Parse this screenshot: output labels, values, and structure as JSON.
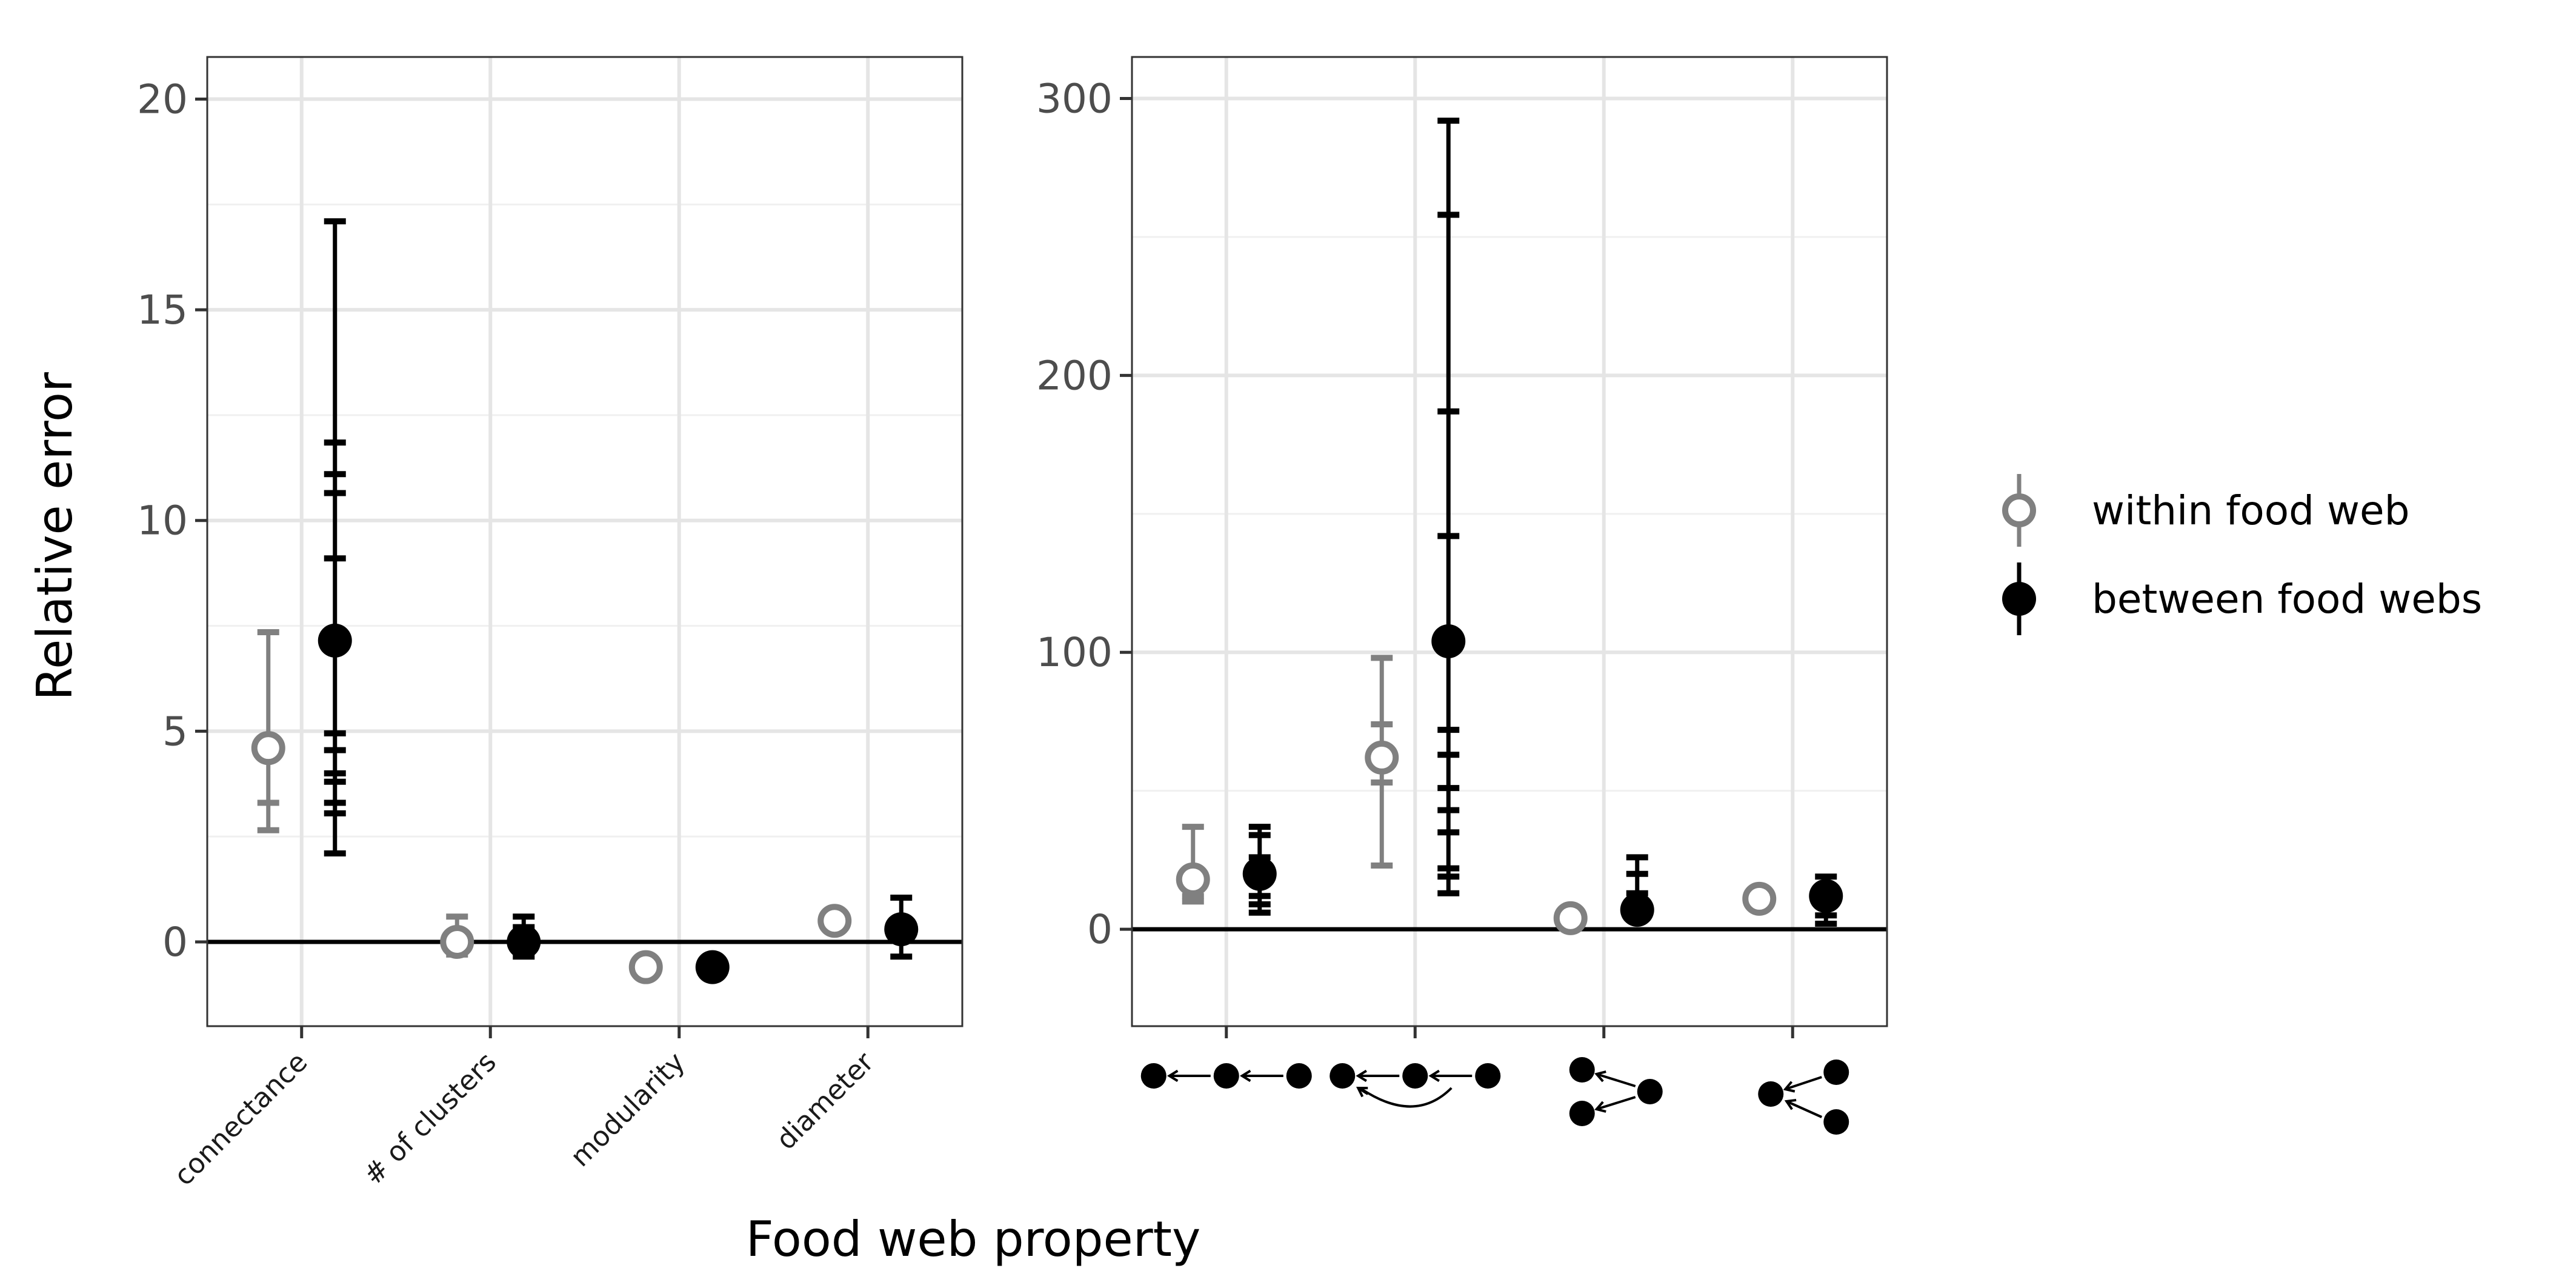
{
  "chart_data": [
    {
      "type": "scatter",
      "chart_subtype": "point with error bars",
      "xlabel": "Food web property",
      "ylabel": "Relative error",
      "categories": [
        "connectance",
        "# of clusters",
        "modularity",
        "diameter"
      ],
      "ylim": [
        -2,
        21
      ],
      "yticks": [
        0,
        5,
        10,
        15,
        20
      ],
      "reference_line": 0,
      "grid": true,
      "series": [
        {
          "name": "within food web",
          "marker": "open circle",
          "color": "#808080",
          "values": [
            4.6,
            0.0,
            -0.6,
            0.5
          ],
          "error_bar_caps": [
            [
              7.35,
              3.3,
              2.65
            ],
            [
              0.6,
              -0.3
            ],
            [],
            []
          ]
        },
        {
          "name": "between food webs",
          "marker": "filled circle",
          "color": "#000000",
          "values": [
            7.15,
            0.0,
            -0.6,
            0.3
          ],
          "error_bar_caps": [
            [
              17.1,
              11.85,
              11.1,
              10.65,
              9.1,
              4.95,
              4.55,
              4.0,
              3.8,
              3.3,
              3.05,
              2.1
            ],
            [
              0.6,
              0.35,
              -0.1,
              -0.35
            ],
            [],
            [
              1.05,
              0.2,
              -0.35
            ]
          ]
        }
      ]
    },
    {
      "type": "scatter",
      "chart_subtype": "point with error bars",
      "categories": [
        "motif-chain",
        "motif-omnivory",
        "motif-apparent-competition",
        "motif-exploitative-competition"
      ],
      "ylim": [
        -35,
        315
      ],
      "yticks": [
        0,
        100,
        200,
        300
      ],
      "reference_line": 0,
      "grid": true,
      "series": [
        {
          "name": "within food web",
          "marker": "open circle",
          "color": "#808080",
          "values": [
            18,
            62,
            4,
            11
          ],
          "error_bar_caps": [
            [
              37,
              12,
              10
            ],
            [
              98,
              74,
              53,
              23
            ],
            [],
            []
          ]
        },
        {
          "name": "between food webs",
          "marker": "filled circle",
          "color": "#000000",
          "values": [
            20,
            104,
            7,
            12
          ],
          "error_bar_caps": [
            [
              37,
              34,
              26,
              23,
              12,
              9,
              6
            ],
            [
              292,
              258,
              187,
              142,
              72,
              63,
              51,
              43,
              35,
              22,
              19,
              13
            ],
            [
              26,
              20,
              13,
              5
            ],
            [
              19,
              15,
              5,
              2
            ]
          ]
        }
      ]
    }
  ],
  "legend": {
    "position": "right",
    "items": [
      "within food web",
      "between food webs"
    ]
  }
}
